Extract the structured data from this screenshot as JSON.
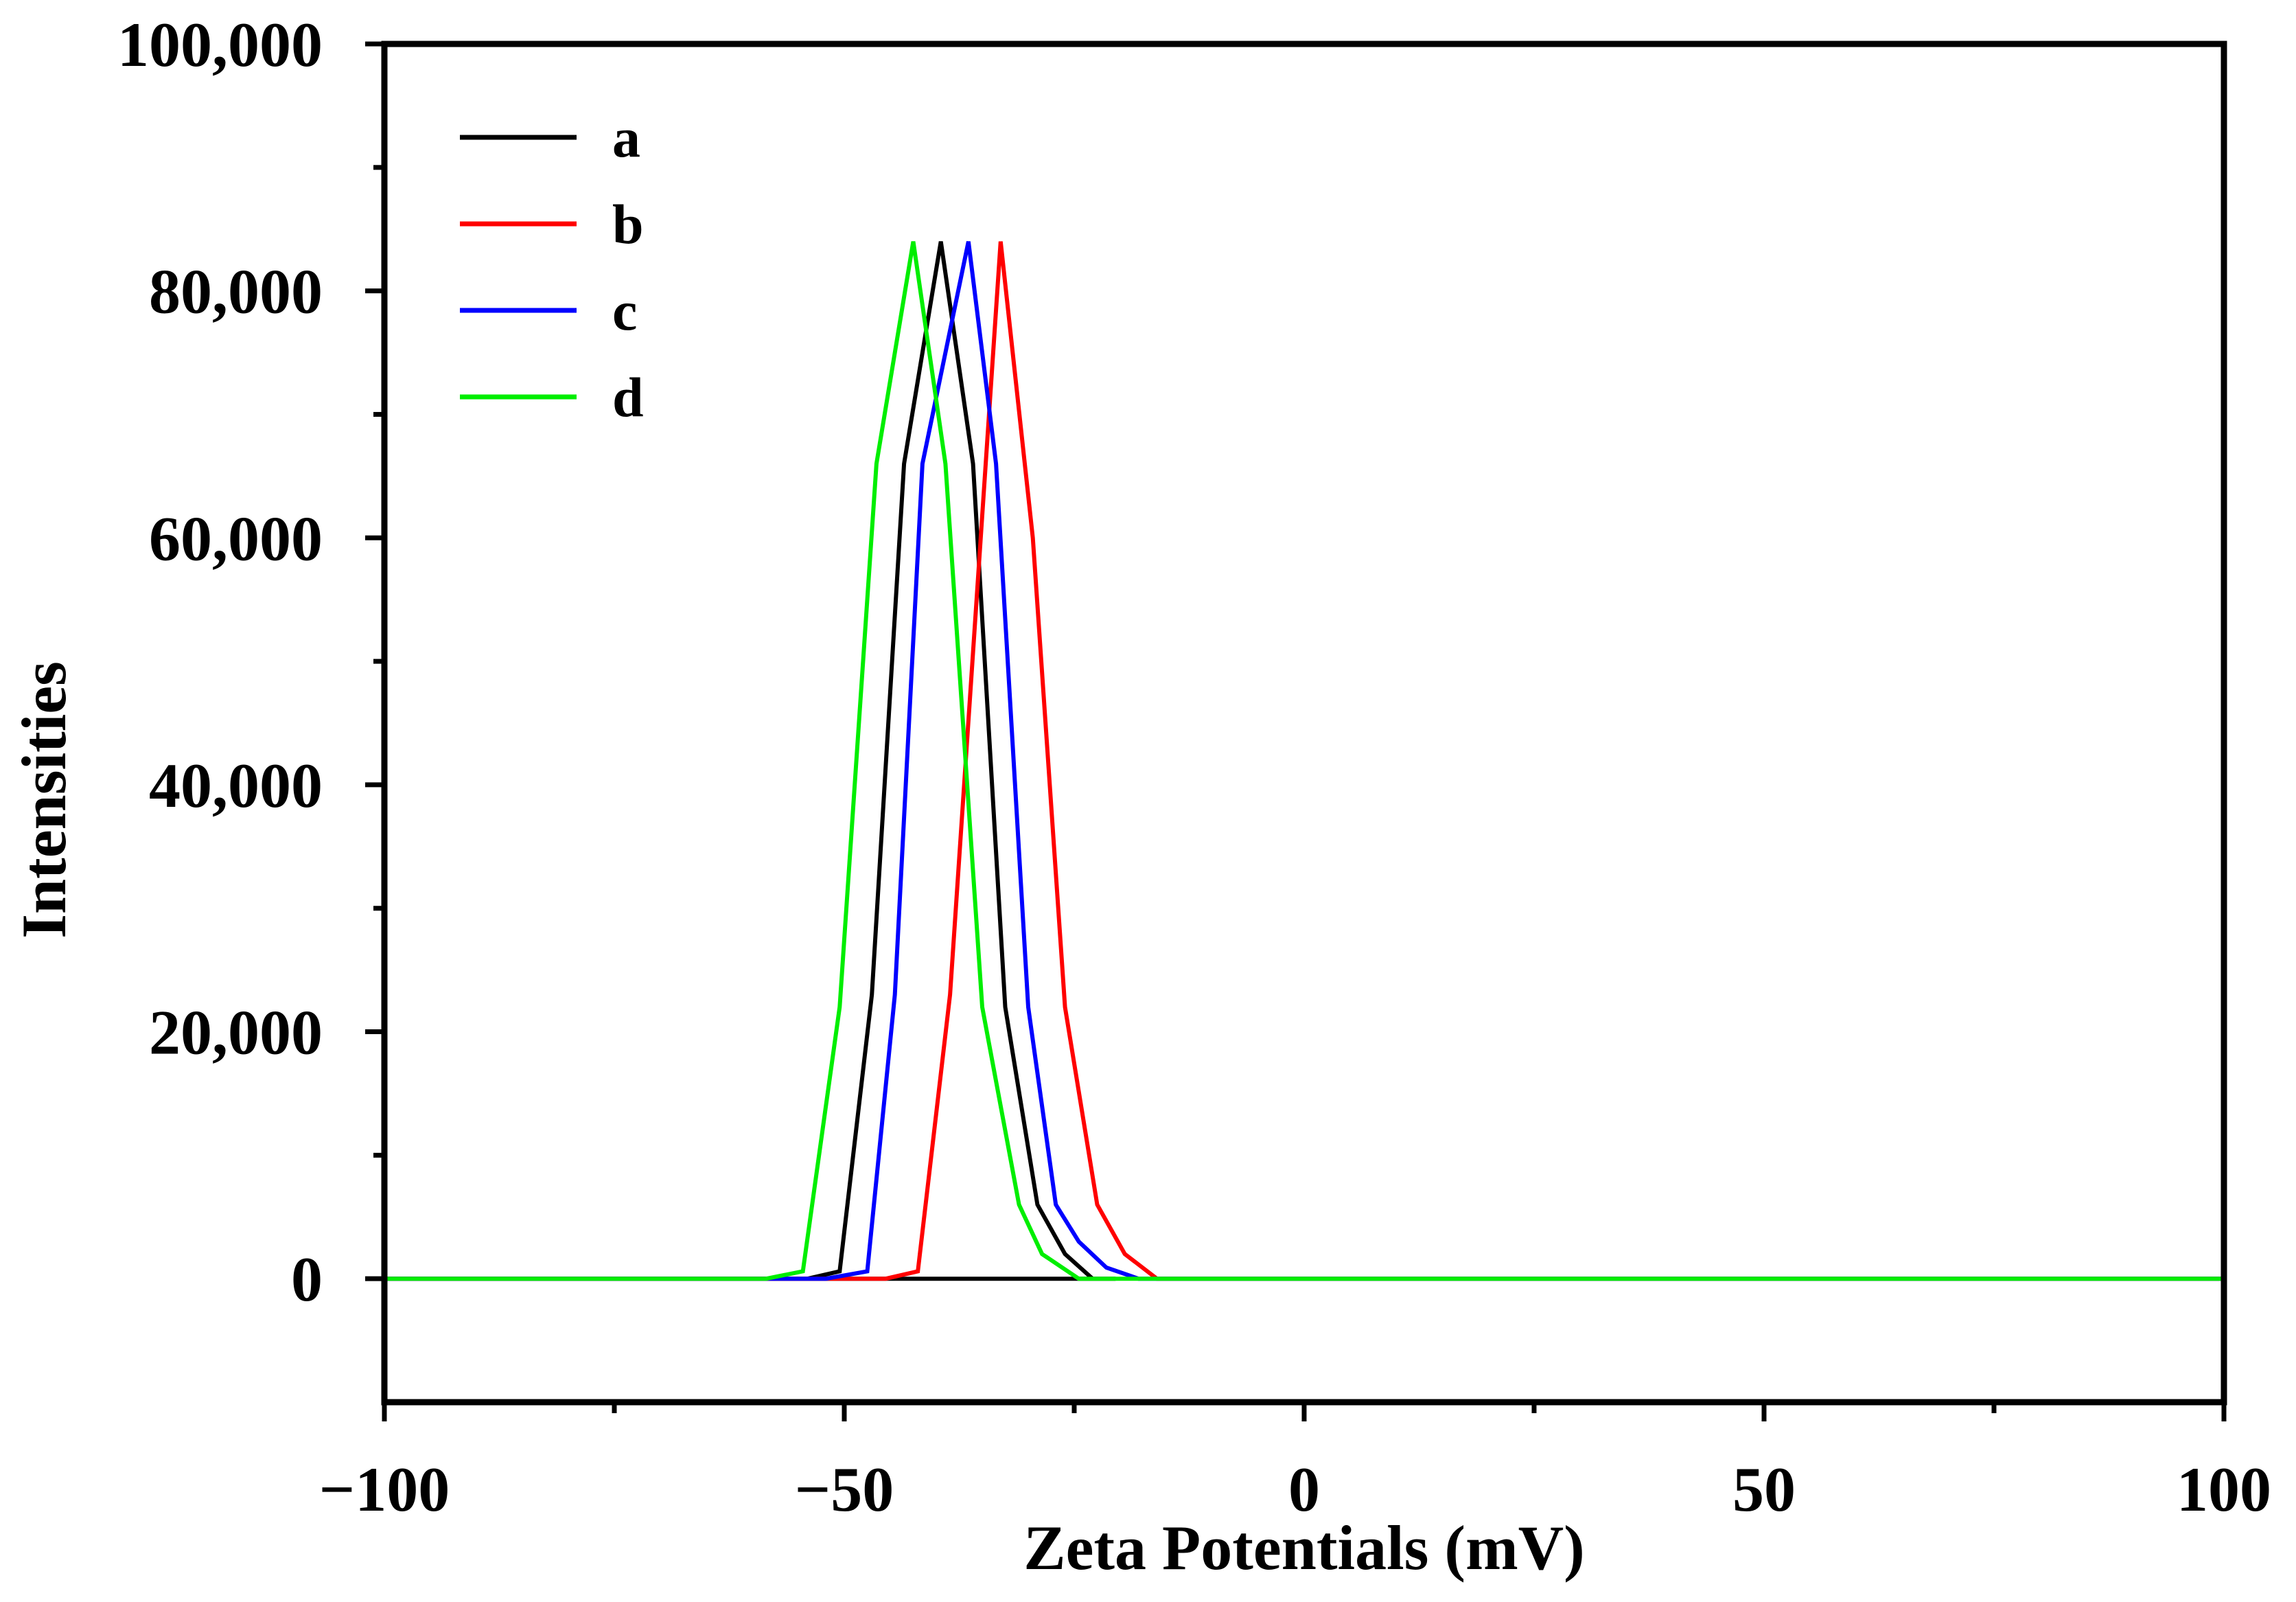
{
  "chart_data": {
    "type": "line",
    "title": "",
    "xlabel": "Zeta Potentials (mV)",
    "ylabel": "Intensities",
    "xlim": [
      -100,
      100
    ],
    "ylim": [
      -10000,
      100000
    ],
    "grid": false,
    "legend_position": "top-left",
    "x_ticks": [
      -100,
      -50,
      0,
      50,
      100
    ],
    "x_tick_labels": [
      "−100",
      "−50",
      "0",
      "50",
      "100"
    ],
    "y_ticks": [
      0,
      20000,
      40000,
      60000,
      80000,
      100000
    ],
    "y_tick_labels": [
      "0",
      "20,000",
      "40,000",
      "60,000",
      "80,000",
      "100,000"
    ],
    "series": [
      {
        "name": "a",
        "color": "#000000",
        "x": [
          -100,
          -58,
          -54,
          -50.5,
          -47,
          -43.5,
          -39.5,
          -36,
          -32.5,
          -29,
          -26,
          -23,
          -20.5,
          -100
        ],
        "y": [
          0,
          0,
          0,
          600,
          23000,
          66000,
          84000,
          66000,
          22000,
          6000,
          2000,
          0,
          0,
          0
        ]
      },
      {
        "name": "b",
        "color": "#ff0000",
        "x": [
          -100,
          -52,
          -45.5,
          -42,
          -38.5,
          -33,
          -29.5,
          -26,
          -22.5,
          -19.5,
          -16,
          0,
          100
        ],
        "y": [
          0,
          0,
          0,
          600,
          23000,
          84000,
          60000,
          22000,
          6000,
          2000,
          0,
          0,
          0
        ]
      },
      {
        "name": "c",
        "color": "#0000ff",
        "x": [
          -100,
          -56,
          -52,
          -47.5,
          -44.5,
          -41.5,
          -36.5,
          -33.5,
          -30,
          -27,
          -24.5,
          -21.5,
          -18,
          0,
          100
        ],
        "y": [
          0,
          0,
          0,
          600,
          23000,
          66000,
          84000,
          66000,
          22000,
          6000,
          3000,
          900,
          0,
          0,
          0
        ]
      },
      {
        "name": "d",
        "color": "#00ee00",
        "x": [
          -100,
          -58.5,
          -54.5,
          -50.5,
          -46.5,
          -42.5,
          -39,
          -35,
          -31,
          -28.5,
          -24.5,
          -20.5,
          0,
          38,
          100
        ],
        "y": [
          0,
          0,
          600,
          22000,
          66000,
          84000,
          66000,
          22000,
          6000,
          2000,
          0,
          0,
          0,
          0,
          0
        ]
      }
    ]
  }
}
